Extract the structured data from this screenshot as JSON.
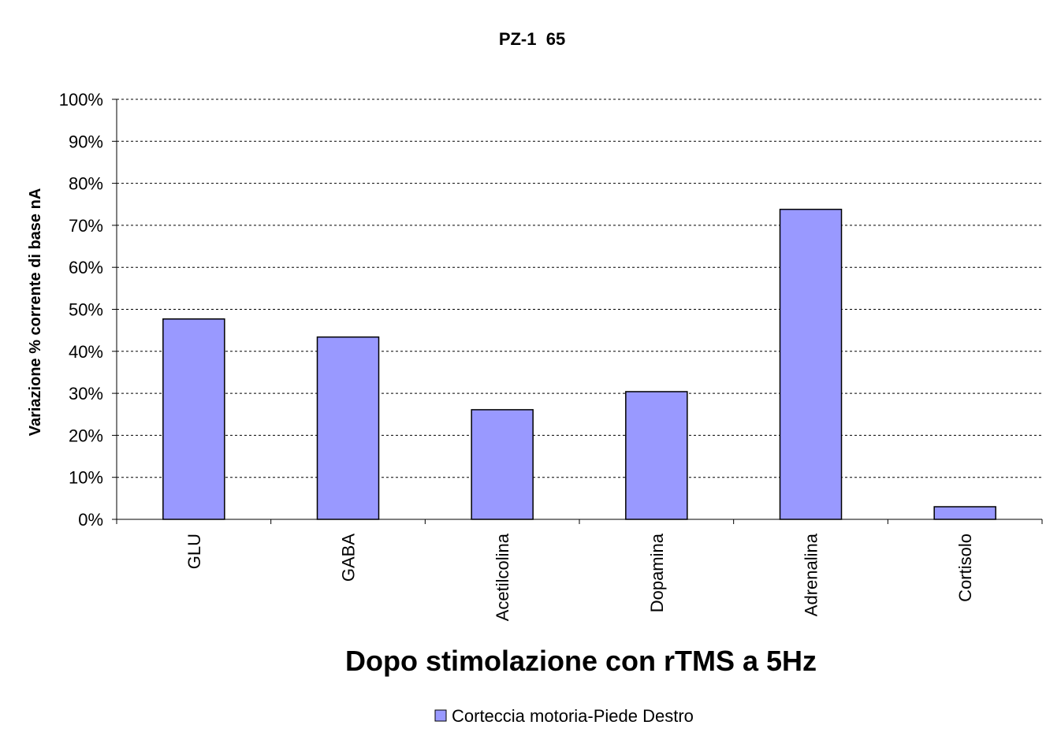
{
  "chart_data": {
    "type": "bar",
    "title": "PZ-1  65",
    "xlabel": "Dopo stimolazione con rTMS a 5Hz",
    "ylabel": "Variazione % corrente di base nA",
    "categories": [
      "GLU",
      "GABA",
      "Acetilcolina",
      "Dopamina",
      "Adrenalina",
      "Cortisolo"
    ],
    "series": [
      {
        "name": "Corteccia motoria-Piede Destro",
        "values": [
          47.7,
          43.4,
          26.1,
          30.4,
          73.8,
          3.0
        ],
        "color": "#9999ff"
      }
    ],
    "ylim": [
      0,
      100
    ],
    "yticks": [
      0,
      10,
      20,
      30,
      40,
      50,
      60,
      70,
      80,
      90,
      100
    ],
    "ytick_suffix": "%",
    "grid": true,
    "grid_style": "dashed",
    "legend_position": "bottom"
  }
}
